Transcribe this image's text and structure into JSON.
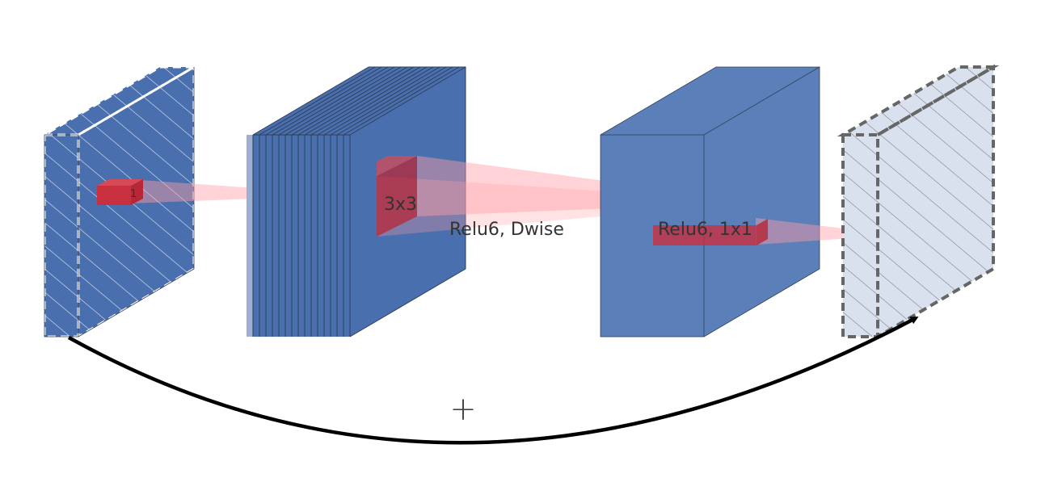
{
  "labels": {
    "input_channel_index": "1",
    "kernel_size": "3x3",
    "depthwise_op": "Relu6, Dwise",
    "pointwise_op": "Relu6, 1x1",
    "residual_add": "+"
  },
  "colors": {
    "block_blue": "#4a6fae",
    "block_blue_light": "#5b7fb8",
    "output_fill": "#d9e1ef",
    "kernel_red": "#c8303f",
    "projection_pink": "#ff9ea6",
    "edge": "#2f3f5a",
    "arrow": "#000000"
  }
}
